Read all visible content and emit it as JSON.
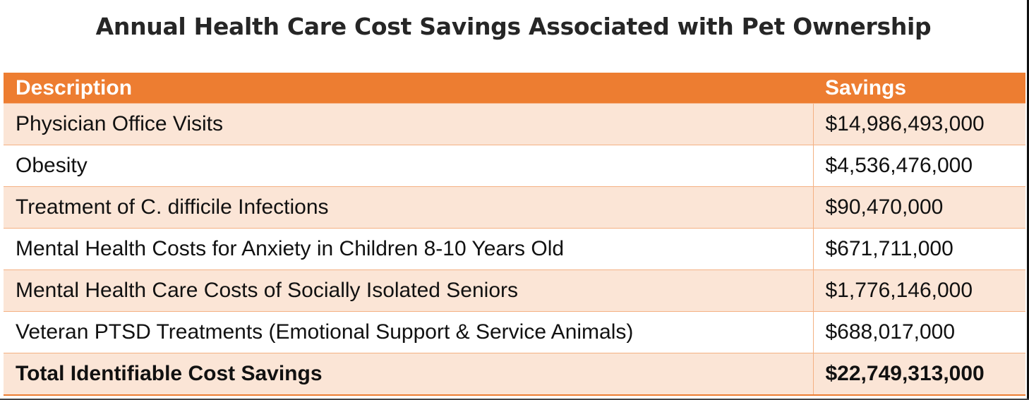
{
  "title": "Annual Health Care Cost Savings Associated with Pet Ownership",
  "table": {
    "headers": [
      "Description",
      "Savings"
    ],
    "rows": [
      {
        "description": "Physician Office Visits",
        "savings": "$14,986,493,000"
      },
      {
        "description": "Obesity",
        "savings": "$4,536,476,000"
      },
      {
        "description": "Treatment of C. difficile Infections",
        "savings": "$90,470,000"
      },
      {
        "description": "Mental Health Costs for Anxiety in Children 8-10 Years Old",
        "savings": "$671,711,000"
      },
      {
        "description": "Mental Health Care Costs of Socially Isolated Seniors",
        "savings": "$1,776,146,000"
      },
      {
        "description": "Veteran PTSD Treatments (Emotional Support & Service Animals)",
        "savings": "$688,017,000"
      }
    ],
    "total": {
      "description": "Total Identifiable Cost Savings",
      "savings": "$22,749,313,000"
    }
  },
  "colors": {
    "header_bg": "#ed7d31",
    "band_bg": "#fbe5d6",
    "border": "#f4b183",
    "title_text": "#262626"
  }
}
